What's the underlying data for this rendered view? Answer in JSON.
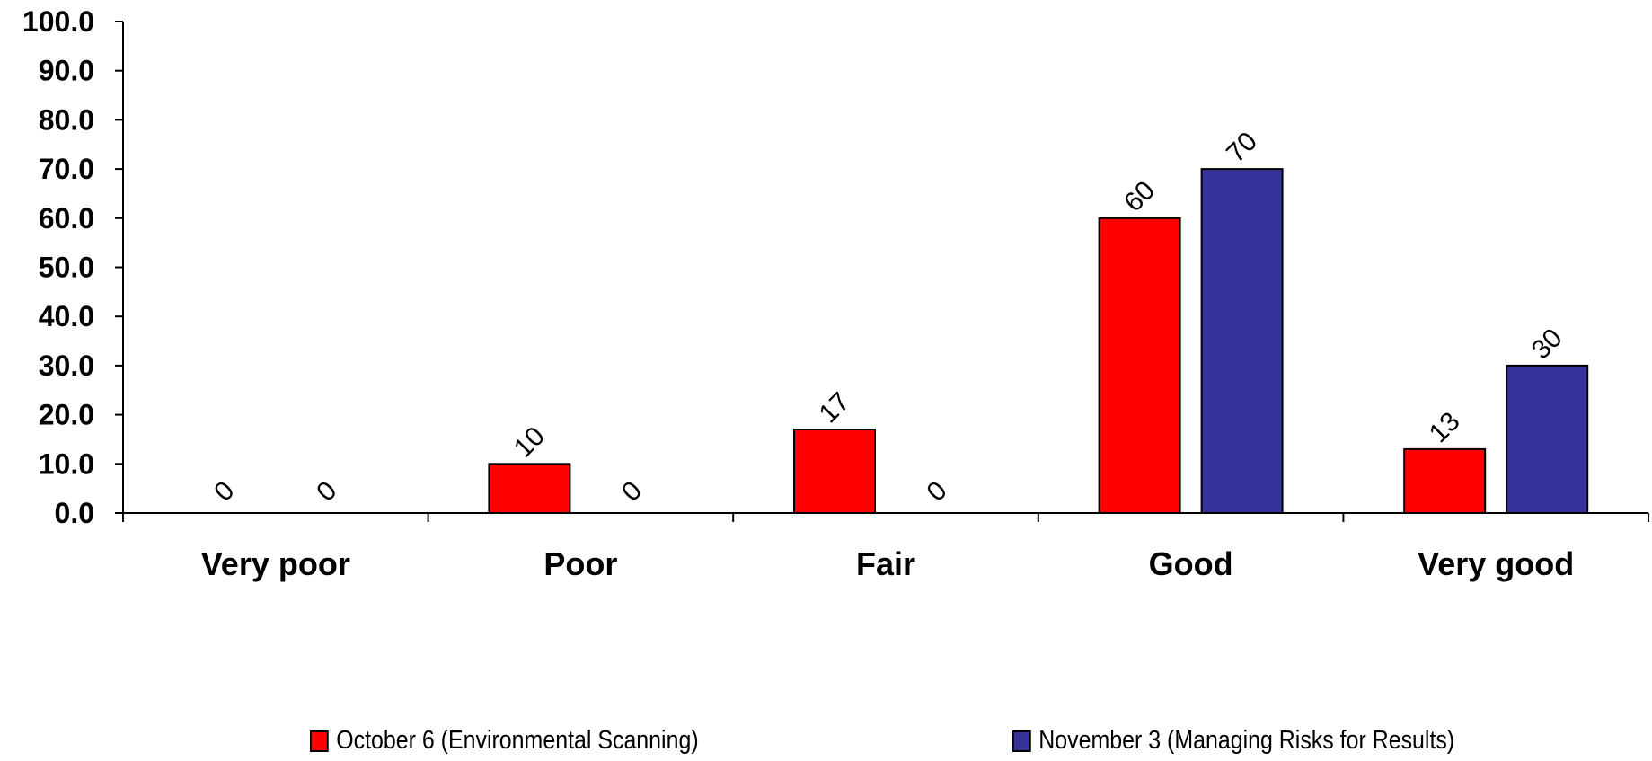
{
  "chart_data": {
    "type": "bar",
    "title": "",
    "xlabel": "",
    "ylabel": "",
    "categories": [
      "Very poor",
      "Poor",
      "Fair",
      "Good",
      "Very good"
    ],
    "ylim": [
      0,
      100
    ],
    "yticks": [
      "0.0",
      "10.0",
      "20.0",
      "30.0",
      "40.0",
      "50.0",
      "60.0",
      "70.0",
      "80.0",
      "90.0",
      "100.0"
    ],
    "grid": false,
    "legend_position": "bottom",
    "series": [
      {
        "name": "October 6 (Environmental Scanning)",
        "color": "#ff0000",
        "values": [
          0,
          10,
          17,
          60,
          13
        ]
      },
      {
        "name": "November 3 (Managing Risks for Results)",
        "color": "#333399",
        "values": [
          0,
          0,
          0,
          70,
          30
        ]
      }
    ]
  }
}
